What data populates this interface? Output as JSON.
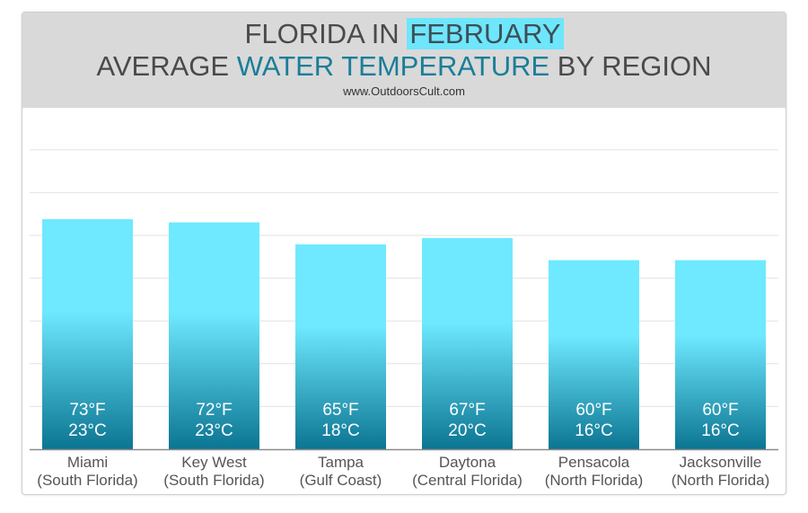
{
  "header": {
    "line1_pre": "FLORIDA IN ",
    "line1_highlight": "FEBRUARY",
    "line2_pre": "AVERAGE ",
    "line2_highlight": "WATER TEMPERATURE",
    "line2_post": " BY REGION",
    "site": "www.OutdoorsCult.com"
  },
  "colors": {
    "bar_top": "#6ee9ff",
    "bar_bottom": "#0b7592",
    "highlight_bg": "#6ee6fb",
    "accent_text": "#1a7e98"
  },
  "chart_data": {
    "type": "bar",
    "title": "FLORIDA IN FEBRUARY — AVERAGE WATER TEMPERATURE BY REGION",
    "xlabel": "",
    "ylabel": "",
    "ylim": [
      0,
      80
    ],
    "grid": true,
    "categories": [
      {
        "name": "Miami",
        "region": "(South Florida)",
        "f": 73,
        "c": 23,
        "f_label": "73°F",
        "c_label": "23°C"
      },
      {
        "name": "Key West",
        "region": "(South Florida)",
        "f": 72,
        "c": 23,
        "f_label": "72°F",
        "c_label": "23°C"
      },
      {
        "name": "Tampa",
        "region": "(Gulf Coast)",
        "f": 65,
        "c": 18,
        "f_label": "65°F",
        "c_label": "18°C"
      },
      {
        "name": "Daytona",
        "region": "(Central Florida)",
        "f": 67,
        "c": 20,
        "f_label": "67°F",
        "c_label": "20°C"
      },
      {
        "name": "Pensacola",
        "region": "(North Florida)",
        "f": 60,
        "c": 16,
        "f_label": "60°F",
        "c_label": "16°C"
      },
      {
        "name": "Jacksonville",
        "region": "(North Florida)",
        "f": 60,
        "c": 16,
        "f_label": "60°F",
        "c_label": "16°C"
      }
    ]
  }
}
